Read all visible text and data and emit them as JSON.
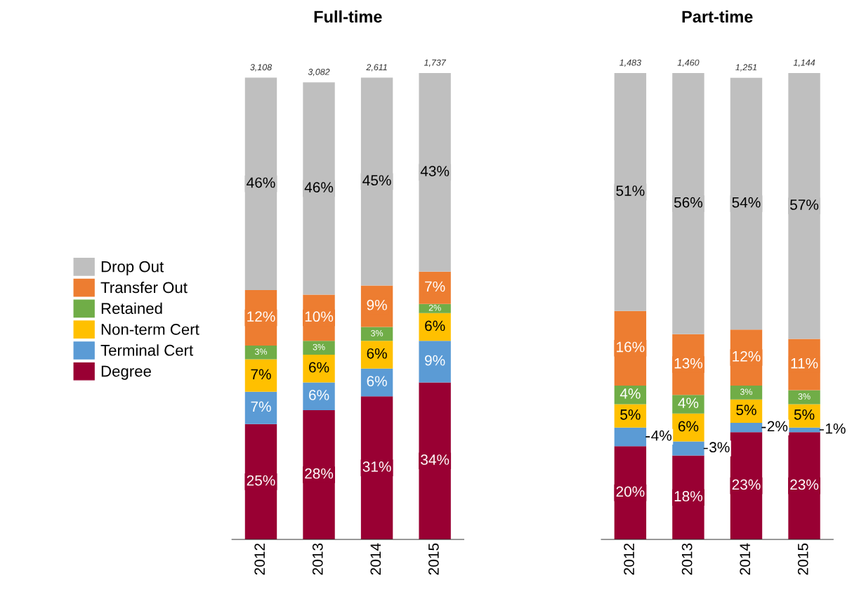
{
  "chart_data": [
    {
      "type": "bar",
      "title": "Full-time",
      "stacked": true,
      "legend": "left",
      "tick_labels": "x",
      "categories": [
        "2012",
        "2013",
        "2014",
        "2015"
      ],
      "annotations": [
        "3,108",
        "3,082",
        "2,611",
        "1,737"
      ],
      "series": [
        {
          "name": "Degree",
          "color": "#990033",
          "values": [
            25,
            28,
            31,
            34
          ],
          "value_labels": [
            "25%",
            "28%",
            "31%",
            "34%"
          ]
        },
        {
          "name": "Terminal Cert",
          "color": "#5b9bd5",
          "values": [
            7,
            6,
            6,
            9
          ],
          "value_labels": [
            "7%",
            "6%",
            "6%",
            "9%"
          ]
        },
        {
          "name": "Non-term Cert",
          "color": "#ffc000",
          "values": [
            7,
            6,
            6,
            6
          ],
          "value_labels": [
            "7%",
            "6%",
            "6%",
            "6%"
          ]
        },
        {
          "name": "Retained",
          "color": "#70ad47",
          "values": [
            3,
            3,
            3,
            2
          ],
          "value_labels": [
            "3%",
            "3%",
            "3%",
            "2%"
          ]
        },
        {
          "name": "Transfer Out",
          "color": "#ed7d31",
          "values": [
            12,
            10,
            9,
            7
          ],
          "value_labels": [
            "12%",
            "10%",
            "9%",
            "7%"
          ]
        },
        {
          "name": "Drop Out",
          "color": "#bfbfbf",
          "values": [
            46,
            46,
            45,
            43
          ],
          "value_labels": [
            "46%",
            "46%",
            "45%",
            "43%"
          ]
        }
      ]
    },
    {
      "type": "bar",
      "title": "Part-time",
      "stacked": true,
      "tick_labels": "x",
      "categories": [
        "2012",
        "2013",
        "2014",
        "2015"
      ],
      "annotations": [
        "1,483",
        "1,460",
        "1,251",
        "1,144"
      ],
      "series": [
        {
          "color": "#990033",
          "values": [
            20,
            18,
            23,
            23
          ],
          "value_labels": [
            "20%",
            "18%",
            "23%",
            "23%"
          ]
        },
        {
          "color": "#5b9bd5",
          "values": [
            4,
            3,
            2,
            1
          ],
          "value_labels": [
            "4%",
            "3%",
            "2%",
            "1%"
          ]
        },
        {
          "color": "#ffc000",
          "values": [
            5,
            6,
            5,
            5
          ],
          "value_labels": [
            "5%",
            "6%",
            "5%",
            "5%"
          ]
        },
        {
          "color": "#70ad47",
          "values": [
            4,
            4,
            3,
            3
          ],
          "value_labels": [
            "4%",
            "4%",
            "3%",
            "3%"
          ]
        },
        {
          "color": "#ed7d31",
          "values": [
            16,
            13,
            12,
            11
          ],
          "value_labels": [
            "16%",
            "13%",
            "12%",
            "11%"
          ]
        },
        {
          "color": "#bfbfbf",
          "values": [
            51,
            56,
            54,
            57
          ],
          "value_labels": [
            "51%",
            "56%",
            "54%",
            "57%"
          ]
        }
      ]
    }
  ]
}
